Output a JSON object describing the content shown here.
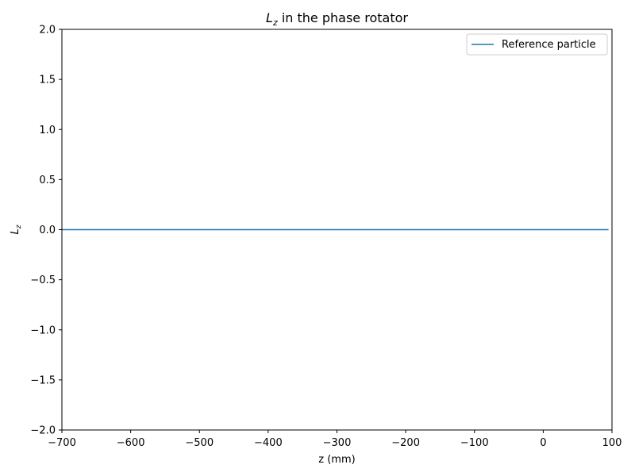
{
  "chart_data": {
    "type": "line",
    "title": {
      "symbol": "L",
      "subscript": "z",
      "rest": " in the phase rotator"
    },
    "xlabel": "z (mm)",
    "ylabel": {
      "symbol": "L",
      "subscript": "z"
    },
    "xlim": [
      -700,
      100
    ],
    "ylim": [
      -2.0,
      2.0
    ],
    "xticks": [
      -700,
      -600,
      -500,
      -400,
      -300,
      -200,
      -100,
      0,
      100
    ],
    "yticks": [
      -2.0,
      -1.5,
      -1.0,
      -0.5,
      0.0,
      0.5,
      1.0,
      1.5,
      2.0
    ],
    "xtick_labels": [
      "−700",
      "−600",
      "−500",
      "−400",
      "−300",
      "−200",
      "−100",
      "0",
      "100"
    ],
    "ytick_labels": [
      "−2.0",
      "−1.5",
      "−1.0",
      "−0.5",
      "0.0",
      "0.5",
      "1.0",
      "1.5",
      "2.0"
    ],
    "grid": false,
    "legend_position": "top-right",
    "series": [
      {
        "name": "Reference particle",
        "color": "#1f77b4",
        "x": [
          -700,
          95
        ],
        "y": [
          0.0,
          0.0
        ]
      }
    ]
  }
}
